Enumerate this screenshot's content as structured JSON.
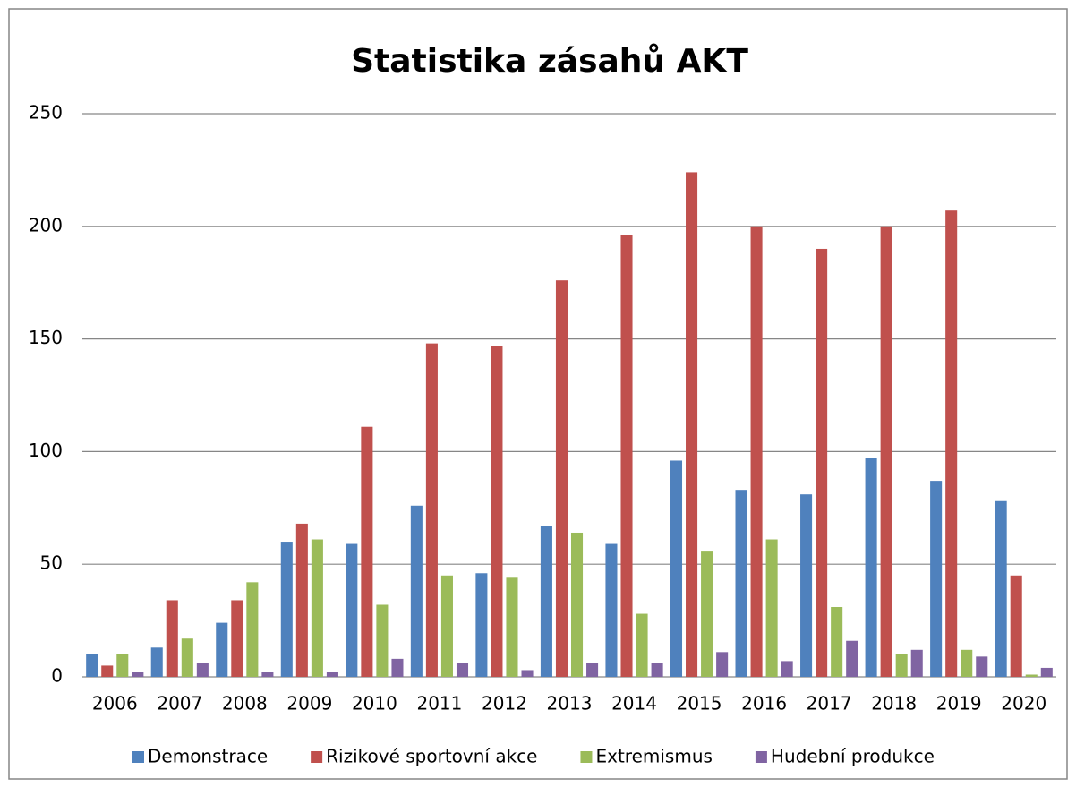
{
  "chart_data": {
    "type": "bar",
    "title": "Statistika zásahů AKT",
    "categories": [
      "2006",
      "2007",
      "2008",
      "2009",
      "2010",
      "2011",
      "2012",
      "2013",
      "2014",
      "2015",
      "2016",
      "2017",
      "2018",
      "2019",
      "2020"
    ],
    "series": [
      {
        "name": "Demonstrace",
        "color": "#4f81bd",
        "values": [
          10,
          13,
          24,
          60,
          59,
          76,
          46,
          67,
          59,
          96,
          83,
          81,
          97,
          87,
          78
        ]
      },
      {
        "name": "Rizikové sportovní akce",
        "color": "#c0504d",
        "values": [
          5,
          34,
          34,
          68,
          111,
          148,
          147,
          176,
          196,
          224,
          200,
          190,
          200,
          207,
          45
        ]
      },
      {
        "name": "Extremismus",
        "color": "#9bbb59",
        "values": [
          10,
          17,
          42,
          61,
          32,
          45,
          44,
          64,
          28,
          56,
          61,
          31,
          10,
          12,
          1
        ]
      },
      {
        "name": "Hudební produkce",
        "color": "#8064a2",
        "values": [
          2,
          6,
          2,
          2,
          8,
          6,
          3,
          6,
          6,
          11,
          7,
          16,
          12,
          9,
          4
        ]
      }
    ],
    "ylim": [
      0,
      250
    ],
    "yticks": [
      0,
      50,
      100,
      150,
      200,
      250
    ],
    "grid": true,
    "legend": "bottom"
  }
}
